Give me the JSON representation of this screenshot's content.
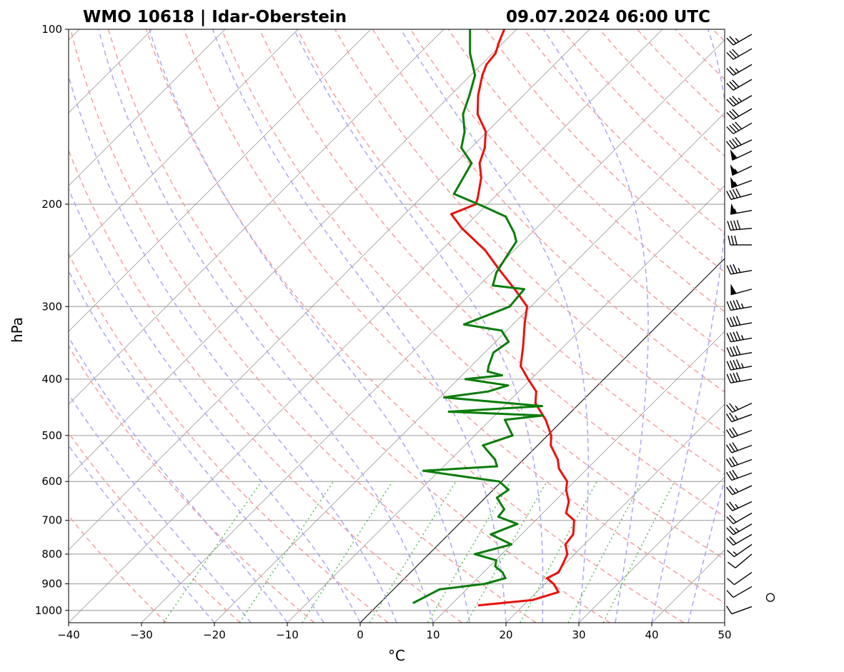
{
  "chart_data": {
    "type": "line",
    "title_left": "WMO 10618 | Idar-Oberstein",
    "title_right": "09.07.2024 06:00 UTC",
    "xlabel": "°C",
    "ylabel": "hPa",
    "xlim": [
      -40,
      50
    ],
    "ylim": [
      1050,
      100
    ],
    "y_scale": "log",
    "skew": true,
    "x_ticks": [
      -40,
      -30,
      -20,
      -10,
      0,
      10,
      20,
      30,
      40,
      50
    ],
    "x_tick_labels": [
      "−40",
      "−30",
      "−20",
      "−10",
      "0",
      "10",
      "20",
      "30",
      "40",
      "50"
    ],
    "y_ticks": [
      1000,
      900,
      800,
      700,
      600,
      500,
      400,
      300,
      200,
      100
    ],
    "y_tick_labels": [
      "1000",
      "900",
      "800",
      "700",
      "600",
      "500",
      "400",
      "300",
      "200",
      "100"
    ],
    "grid": true,
    "colors": {
      "temperature": "#e8120c",
      "dewpoint": "#0a7d0a",
      "dry_adiabats": "#f4a0a0",
      "moist_adiabats": "#a8a8f0",
      "mixing_ratio": "#58b858",
      "isotherms": "#8c8c8c",
      "isobars": "#a8a8a8",
      "zero_isotherm": "#000000"
    },
    "series": [
      {
        "id": "temperature",
        "pressure": [
          980,
          960,
          930,
          900,
          880,
          860,
          830,
          800,
          770,
          740,
          700,
          680,
          650,
          620,
          600,
          570,
          550,
          520,
          500,
          470,
          440,
          420,
          400,
          380,
          350,
          320,
          300,
          280,
          260,
          240,
          220,
          208,
          200,
          195,
          180,
          170,
          160,
          150,
          140,
          130,
          120,
          115,
          110,
          105,
          100
        ],
        "values": [
          13.9,
          20.5,
          23.0,
          21.2,
          19.5,
          20.3,
          19.7,
          19.0,
          17.4,
          17.1,
          15.3,
          13.2,
          12.0,
          10.0,
          9.0,
          6.1,
          4.7,
          1.8,
          0.5,
          -2.4,
          -6.1,
          -7.6,
          -10.4,
          -13.2,
          -15.7,
          -18.6,
          -20.5,
          -24.6,
          -29.2,
          -34.0,
          -40.2,
          -43.6,
          -41.6,
          -42.2,
          -44.5,
          -46.7,
          -48.1,
          -50.2,
          -53.7,
          -56.2,
          -58.4,
          -59.3,
          -59.6,
          -60.7,
          -61.7
        ]
      },
      {
        "id": "dewpoint",
        "pressure": [
          970,
          950,
          920,
          900,
          880,
          860,
          840,
          820,
          800,
          770,
          740,
          710,
          690,
          670,
          640,
          620,
          600,
          590,
          575,
          565,
          550,
          520,
          500,
          470,
          462,
          455,
          445,
          430,
          420,
          410,
          400,
          394,
          388,
          380,
          360,
          345,
          330,
          322,
          300,
          280,
          276,
          262,
          240,
          232,
          224,
          210,
          202,
          192,
          170,
          160,
          150,
          140,
          130,
          120,
          110,
          100
        ],
        "values": [
          4.6,
          5.3,
          6.3,
          11.8,
          13.8,
          12.6,
          10.8,
          10.1,
          6.3,
          10.0,
          5.8,
          8.0,
          4.4,
          4.2,
          1.6,
          2.1,
          -0.3,
          -5.1,
          -12.2,
          -2.7,
          -3.9,
          -7.5,
          -4.8,
          -8.0,
          -3.4,
          -16.8,
          -4.8,
          -19.4,
          -14.2,
          -12.3,
          -19.0,
          -14.5,
          -17.0,
          -17.6,
          -18.8,
          -18.2,
          -20.7,
          -26.7,
          -22.9,
          -23.3,
          -28.1,
          -29.4,
          -30.5,
          -30.9,
          -32.4,
          -35.8,
          -40.1,
          -46.0,
          -47.8,
          -51.3,
          -53.1,
          -55.7,
          -57.4,
          -59.4,
          -63.1,
          -66.4
        ]
      }
    ],
    "wind_barbs": [
      {
        "p": 985,
        "dir": 250,
        "kt": 10
      },
      {
        "p": 950,
        "dir": 0,
        "kt": 0
      },
      {
        "p": 910,
        "dir": 240,
        "kt": 10
      },
      {
        "p": 860,
        "dir": 235,
        "kt": 10
      },
      {
        "p": 800,
        "dir": 230,
        "kt": 10
      },
      {
        "p": 770,
        "dir": 235,
        "kt": 15
      },
      {
        "p": 740,
        "dir": 240,
        "kt": 20
      },
      {
        "p": 710,
        "dir": 240,
        "kt": 25
      },
      {
        "p": 680,
        "dir": 240,
        "kt": 20
      },
      {
        "p": 650,
        "dir": 245,
        "kt": 25
      },
      {
        "p": 610,
        "dir": 245,
        "kt": 25
      },
      {
        "p": 580,
        "dir": 250,
        "kt": 30
      },
      {
        "p": 550,
        "dir": 250,
        "kt": 30
      },
      {
        "p": 520,
        "dir": 250,
        "kt": 30
      },
      {
        "p": 490,
        "dir": 250,
        "kt": 30
      },
      {
        "p": 460,
        "dir": 250,
        "kt": 25
      },
      {
        "p": 440,
        "dir": 245,
        "kt": 25
      },
      {
        "p": 400,
        "dir": 260,
        "kt": 40
      },
      {
        "p": 380,
        "dir": 260,
        "kt": 45
      },
      {
        "p": 360,
        "dir": 260,
        "kt": 40
      },
      {
        "p": 340,
        "dir": 260,
        "kt": 45
      },
      {
        "p": 320,
        "dir": 260,
        "kt": 40
      },
      {
        "p": 300,
        "dir": 260,
        "kt": 45
      },
      {
        "p": 280,
        "dir": 255,
        "kt": 50
      },
      {
        "p": 260,
        "dir": 260,
        "kt": 35
      },
      {
        "p": 235,
        "dir": 270,
        "kt": 30
      },
      {
        "p": 220,
        "dir": 265,
        "kt": 40
      },
      {
        "p": 205,
        "dir": 260,
        "kt": 55
      },
      {
        "p": 192,
        "dir": 255,
        "kt": 40
      },
      {
        "p": 182,
        "dir": 250,
        "kt": 55
      },
      {
        "p": 172,
        "dir": 245,
        "kt": 55
      },
      {
        "p": 162,
        "dir": 245,
        "kt": 50
      },
      {
        "p": 155,
        "dir": 245,
        "kt": 40
      },
      {
        "p": 145,
        "dir": 240,
        "kt": 40
      },
      {
        "p": 137,
        "dir": 240,
        "kt": 30
      },
      {
        "p": 130,
        "dir": 240,
        "kt": 35
      },
      {
        "p": 122,
        "dir": 240,
        "kt": 30
      },
      {
        "p": 115,
        "dir": 240,
        "kt": 25
      },
      {
        "p": 108,
        "dir": 240,
        "kt": 30
      },
      {
        "p": 102,
        "dir": 240,
        "kt": 25
      }
    ]
  }
}
